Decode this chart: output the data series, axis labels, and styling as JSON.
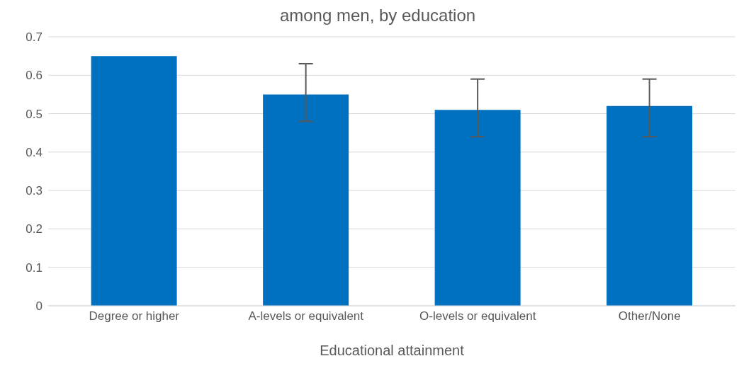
{
  "chart_data": {
    "type": "bar",
    "title": "among men, by education",
    "xlabel": "Educational attainment",
    "categories": [
      "Degree or higher",
      "A-levels or equivalent",
      "O-levels or equivalent",
      "Other/None"
    ],
    "values": [
      0.65,
      0.55,
      0.51,
      0.52
    ],
    "errors": [
      null,
      [
        0.48,
        0.63
      ],
      [
        0.44,
        0.59
      ],
      [
        0.44,
        0.59
      ]
    ],
    "color": "#0070c0",
    "ylim": [
      0,
      0.7
    ],
    "yticks": [
      0,
      0.1,
      0.2,
      0.3,
      0.4,
      0.5,
      0.6,
      0.7
    ],
    "grid": "y",
    "legend": false
  }
}
